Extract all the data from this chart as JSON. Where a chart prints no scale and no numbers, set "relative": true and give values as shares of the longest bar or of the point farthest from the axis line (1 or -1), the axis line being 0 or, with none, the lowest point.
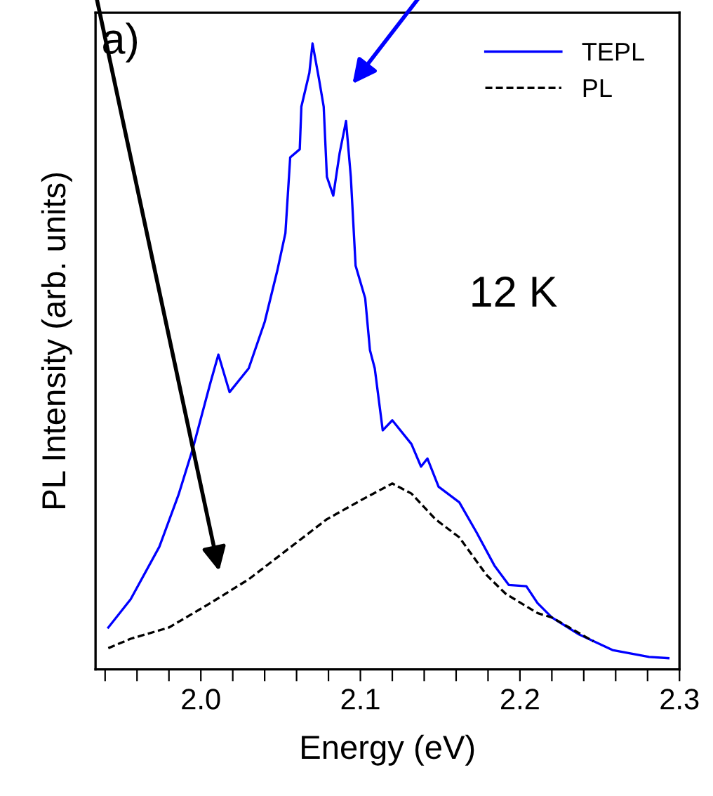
{
  "chart_data": {
    "type": "line",
    "xlabel": "Energy (eV)",
    "ylabel": "PL Intensity (arb. units)",
    "relative": true,
    "xlim": [
      1.934,
      2.3
    ],
    "xticks": [
      {
        "value": 1.94,
        "label": null
      },
      {
        "value": 1.96,
        "label": null
      },
      {
        "value": 1.98,
        "label": null
      },
      {
        "value": 2.0,
        "label": "2.0"
      },
      {
        "value": 2.02,
        "label": null
      },
      {
        "value": 2.04,
        "label": null
      },
      {
        "value": 2.06,
        "label": null
      },
      {
        "value": 2.08,
        "label": null
      },
      {
        "value": 2.1,
        "label": "2.1"
      },
      {
        "value": 2.12,
        "label": null
      },
      {
        "value": 2.14,
        "label": null
      },
      {
        "value": 2.16,
        "label": null
      },
      {
        "value": 2.18,
        "label": null
      },
      {
        "value": 2.2,
        "label": "2.2"
      },
      {
        "value": 2.22,
        "label": null
      },
      {
        "value": 2.24,
        "label": null
      },
      {
        "value": 2.26,
        "label": null
      },
      {
        "value": 2.28,
        "label": null
      },
      {
        "value": 2.3,
        "label": "2.3"
      }
    ],
    "tick_labels": "x",
    "grid": false,
    "legend": "top right",
    "marker": "none",
    "annotations": [
      "a)",
      "12 K"
    ],
    "series": [
      {
        "name": "TEPL",
        "color": "#0000ff",
        "line_style": "solid",
        "x": [
          1.942,
          1.956,
          1.974,
          1.986,
          1.995,
          2.006,
          2.011,
          2.018,
          2.03,
          2.04,
          2.048,
          2.053,
          2.056,
          2.062,
          2.063,
          2.068,
          2.07,
          2.074,
          2.077,
          2.079,
          2.083,
          2.087,
          2.091,
          2.094,
          2.097,
          2.103,
          2.106,
          2.109,
          2.114,
          2.12,
          2.132,
          2.138,
          2.142,
          2.149,
          2.162,
          2.173,
          2.184,
          2.193,
          2.204,
          2.211,
          2.22,
          2.237,
          2.258,
          2.281,
          2.293
        ],
        "values": [
          0.067,
          0.112,
          0.196,
          0.279,
          0.353,
          0.458,
          0.503,
          0.443,
          0.481,
          0.555,
          0.638,
          0.697,
          0.818,
          0.831,
          0.899,
          0.953,
          1.0,
          0.944,
          0.899,
          0.787,
          0.757,
          0.825,
          0.876,
          0.787,
          0.645,
          0.593,
          0.51,
          0.481,
          0.382,
          0.398,
          0.36,
          0.324,
          0.337,
          0.292,
          0.267,
          0.218,
          0.166,
          0.135,
          0.133,
          0.106,
          0.083,
          0.056,
          0.031,
          0.02,
          0.018
        ]
      },
      {
        "name": "PL",
        "color": "#000000",
        "line_style": "dashed",
        "x": [
          1.942,
          1.956,
          1.98,
          2.006,
          2.03,
          2.053,
          2.079,
          2.103,
          2.12,
          2.132,
          2.147,
          2.162,
          2.179,
          2.191,
          2.211,
          2.22,
          2.246
        ],
        "values": [
          0.034,
          0.049,
          0.067,
          0.106,
          0.144,
          0.189,
          0.24,
          0.274,
          0.297,
          0.281,
          0.24,
          0.211,
          0.151,
          0.121,
          0.09,
          0.083,
          0.045
        ]
      }
    ]
  }
}
